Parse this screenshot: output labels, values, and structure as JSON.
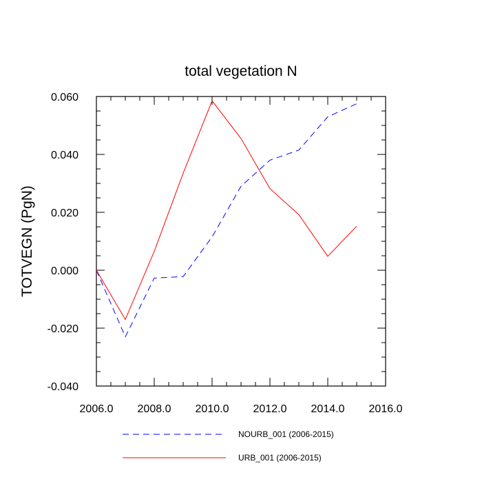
{
  "chart_data": {
    "type": "line",
    "title": "total vegetation N",
    "xlabel": "",
    "ylabel": "TOTVEGN  (PgN)",
    "xlim": [
      2006.0,
      2016.0
    ],
    "ylim": [
      -0.04,
      0.06
    ],
    "x_ticks": [
      2006,
      2008,
      2010,
      2012,
      2014,
      2016
    ],
    "x_tick_labels": [
      "2006.0",
      "2008.0",
      "2010.0",
      "2012.0",
      "2014.0",
      "2016.0"
    ],
    "y_ticks": [
      -0.04,
      -0.02,
      0.0,
      0.02,
      0.04,
      0.06
    ],
    "y_tick_labels": [
      "-0.040",
      "-0.020",
      "0.000",
      "0.020",
      "0.040",
      "0.060"
    ],
    "grid": false,
    "legend_position": "bottom",
    "x": [
      2006,
      2007,
      2008,
      2009,
      2010,
      2011,
      2012,
      2013,
      2014,
      2015
    ],
    "series": [
      {
        "name": "NOURB_001 (2006-2015)",
        "color": "#0000ff",
        "style": "dashed",
        "values": [
          0.0,
          -0.023,
          -0.0027,
          -0.0022,
          0.0115,
          0.029,
          0.038,
          0.0415,
          0.053,
          0.0575
        ]
      },
      {
        "name": "URB_001 (2006-2015)",
        "color": "#ff0000",
        "style": "solid",
        "values": [
          0.0,
          -0.017,
          0.0065,
          0.0335,
          0.0585,
          0.0455,
          0.0282,
          0.0192,
          0.0048,
          0.0152
        ]
      }
    ]
  }
}
